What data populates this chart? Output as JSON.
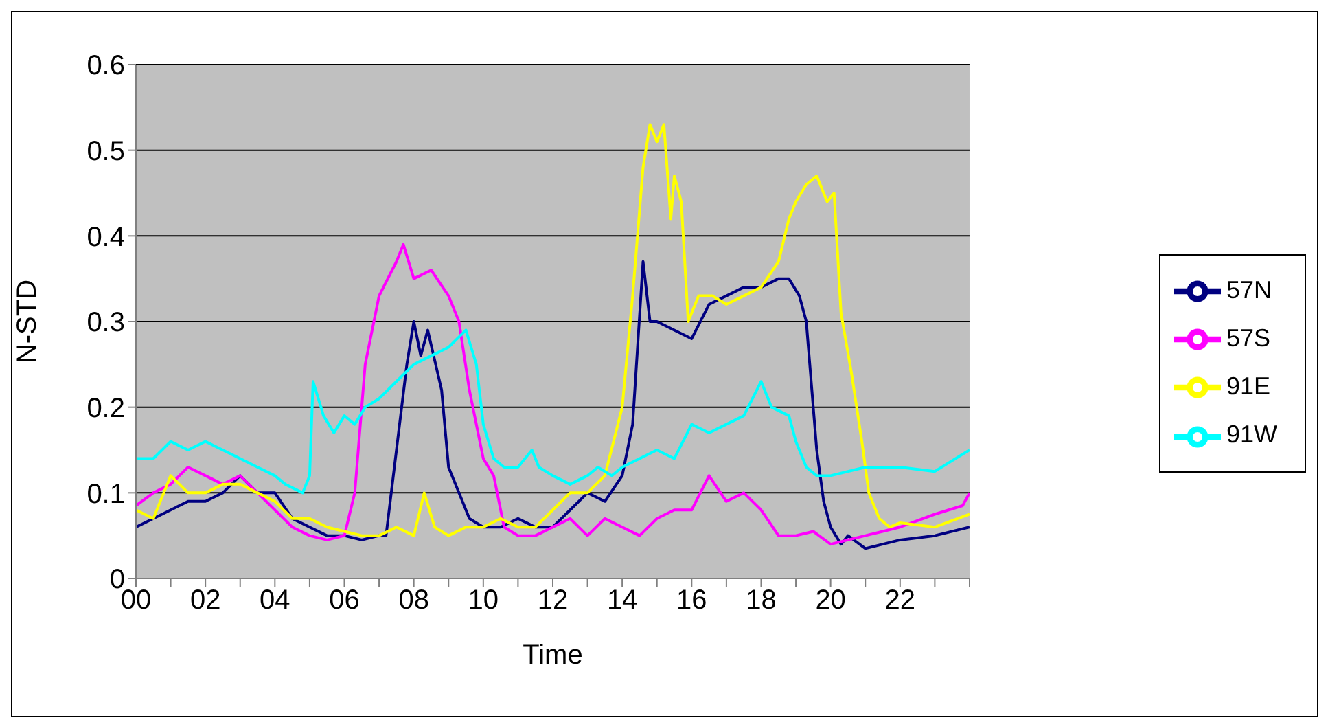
{
  "chart_data": {
    "type": "line",
    "xlabel": "Time",
    "ylabel": "N-STD",
    "xlim": [
      0,
      24
    ],
    "xticks": [
      {
        "value": 0,
        "label": "00"
      },
      {
        "value": 1,
        "label": null
      },
      {
        "value": 2,
        "label": "02"
      },
      {
        "value": 3,
        "label": null
      },
      {
        "value": 4,
        "label": "04"
      },
      {
        "value": 5,
        "label": null
      },
      {
        "value": 6,
        "label": "06"
      },
      {
        "value": 7,
        "label": null
      },
      {
        "value": 8,
        "label": "08"
      },
      {
        "value": 9,
        "label": null
      },
      {
        "value": 10,
        "label": "10"
      },
      {
        "value": 11,
        "label": null
      },
      {
        "value": 12,
        "label": "12"
      },
      {
        "value": 13,
        "label": null
      },
      {
        "value": 14,
        "label": "14"
      },
      {
        "value": 15,
        "label": null
      },
      {
        "value": 16,
        "label": "16"
      },
      {
        "value": 17,
        "label": null
      },
      {
        "value": 18,
        "label": "18"
      },
      {
        "value": 19,
        "label": null
      },
      {
        "value": 20,
        "label": "20"
      },
      {
        "value": 21,
        "label": null
      },
      {
        "value": 22,
        "label": "22"
      },
      {
        "value": 23,
        "label": null
      },
      {
        "value": 24,
        "label": null
      }
    ],
    "ylim": [
      0,
      0.6
    ],
    "yticks": [
      0,
      0.1,
      0.2,
      0.3,
      0.4,
      0.5,
      0.6
    ],
    "grid": "y",
    "legend": "right",
    "marker": "none",
    "line_style": "solid",
    "series": [
      {
        "name": "57N",
        "color": "#000080",
        "x": [
          0,
          0.5,
          1,
          1.5,
          2,
          2.5,
          3,
          3.5,
          4,
          4.5,
          5,
          5.5,
          6,
          6.5,
          7,
          7.2,
          7.5,
          7.8,
          8,
          8.2,
          8.4,
          8.8,
          9,
          9.3,
          9.6,
          10,
          10.5,
          11,
          11.5,
          12,
          12.5,
          13,
          13.5,
          14,
          14.3,
          14.6,
          14.8,
          15,
          15.5,
          16,
          16.5,
          17,
          17.5,
          18,
          18.5,
          18.8,
          19.1,
          19.3,
          19.6,
          19.8,
          20,
          20.3,
          20.5,
          21,
          21.5,
          22,
          23,
          24
        ],
        "values": [
          0.06,
          0.07,
          0.08,
          0.09,
          0.09,
          0.1,
          0.12,
          0.1,
          0.1,
          0.07,
          0.06,
          0.05,
          0.05,
          0.045,
          0.05,
          0.05,
          0.15,
          0.25,
          0.3,
          0.26,
          0.29,
          0.22,
          0.13,
          0.1,
          0.07,
          0.06,
          0.06,
          0.07,
          0.06,
          0.06,
          0.08,
          0.1,
          0.09,
          0.12,
          0.18,
          0.37,
          0.3,
          0.3,
          0.29,
          0.28,
          0.32,
          0.33,
          0.34,
          0.34,
          0.35,
          0.35,
          0.33,
          0.3,
          0.15,
          0.09,
          0.06,
          0.04,
          0.05,
          0.035,
          0.04,
          0.045,
          0.05,
          0.06
        ]
      },
      {
        "name": "57S",
        "color": "#ff00ff",
        "x": [
          0,
          0.5,
          1,
          1.5,
          2,
          2.5,
          3,
          3.5,
          4,
          4.5,
          5,
          5.5,
          6,
          6.3,
          6.6,
          7,
          7.5,
          7.7,
          8,
          8.5,
          9,
          9.3,
          9.6,
          10,
          10.3,
          10.6,
          11,
          11.5,
          12,
          12.5,
          13,
          13.5,
          14,
          14.5,
          15,
          15.5,
          16,
          16.5,
          17,
          17.5,
          18,
          18.5,
          19,
          19.5,
          20,
          20.5,
          21,
          21.5,
          22,
          23,
          23.8,
          24
        ],
        "values": [
          0.085,
          0.1,
          0.11,
          0.13,
          0.12,
          0.11,
          0.12,
          0.1,
          0.08,
          0.06,
          0.05,
          0.045,
          0.05,
          0.1,
          0.25,
          0.33,
          0.37,
          0.39,
          0.35,
          0.36,
          0.33,
          0.3,
          0.22,
          0.14,
          0.12,
          0.06,
          0.05,
          0.05,
          0.06,
          0.07,
          0.05,
          0.07,
          0.06,
          0.05,
          0.07,
          0.08,
          0.08,
          0.12,
          0.09,
          0.1,
          0.08,
          0.05,
          0.05,
          0.055,
          0.04,
          0.045,
          0.05,
          0.055,
          0.06,
          0.075,
          0.085,
          0.1
        ]
      },
      {
        "name": "91E",
        "color": "#ffff00",
        "x": [
          0,
          0.5,
          1,
          1.5,
          2,
          2.5,
          3,
          3.5,
          4,
          4.5,
          5,
          5.5,
          6,
          6.5,
          7,
          7.5,
          8,
          8.3,
          8.6,
          9,
          9.5,
          10,
          10.5,
          11,
          11.5,
          12,
          12.5,
          13,
          13.5,
          14,
          14.3,
          14.6,
          14.8,
          15,
          15.2,
          15.4,
          15.5,
          15.7,
          15.9,
          16.2,
          16.6,
          17,
          17.5,
          18,
          18.5,
          18.8,
          19,
          19.3,
          19.6,
          19.9,
          20.1,
          20.3,
          20.6,
          20.9,
          21.1,
          21.4,
          21.7,
          22,
          23,
          24
        ],
        "values": [
          0.08,
          0.07,
          0.12,
          0.1,
          0.1,
          0.11,
          0.11,
          0.1,
          0.09,
          0.07,
          0.07,
          0.06,
          0.055,
          0.05,
          0.05,
          0.06,
          0.05,
          0.1,
          0.06,
          0.05,
          0.06,
          0.06,
          0.07,
          0.06,
          0.06,
          0.08,
          0.1,
          0.1,
          0.12,
          0.2,
          0.33,
          0.48,
          0.53,
          0.51,
          0.53,
          0.42,
          0.47,
          0.44,
          0.3,
          0.33,
          0.33,
          0.32,
          0.33,
          0.34,
          0.37,
          0.42,
          0.44,
          0.46,
          0.47,
          0.44,
          0.45,
          0.31,
          0.24,
          0.16,
          0.1,
          0.07,
          0.06,
          0.065,
          0.06,
          0.075
        ]
      },
      {
        "name": "91W",
        "color": "#00ffff",
        "x": [
          0,
          0.5,
          1,
          1.5,
          2,
          2.5,
          3,
          3.5,
          4,
          4.3,
          4.8,
          5,
          5.1,
          5.4,
          5.7,
          6,
          6.3,
          6.6,
          7,
          7.5,
          8,
          8.5,
          9,
          9.5,
          9.8,
          10,
          10.3,
          10.6,
          11,
          11.4,
          11.6,
          12,
          12.5,
          13,
          13.3,
          13.7,
          14,
          14.5,
          15,
          15.5,
          16,
          16.5,
          17,
          17.5,
          18,
          18.3,
          18.8,
          19,
          19.3,
          19.6,
          20,
          21,
          22,
          23,
          24
        ],
        "values": [
          0.14,
          0.14,
          0.16,
          0.15,
          0.16,
          0.15,
          0.14,
          0.13,
          0.12,
          0.11,
          0.1,
          0.12,
          0.23,
          0.19,
          0.17,
          0.19,
          0.18,
          0.2,
          0.21,
          0.23,
          0.25,
          0.26,
          0.27,
          0.29,
          0.25,
          0.18,
          0.14,
          0.13,
          0.13,
          0.15,
          0.13,
          0.12,
          0.11,
          0.12,
          0.13,
          0.12,
          0.13,
          0.14,
          0.15,
          0.14,
          0.18,
          0.17,
          0.18,
          0.19,
          0.23,
          0.2,
          0.19,
          0.16,
          0.13,
          0.12,
          0.12,
          0.13,
          0.13,
          0.125,
          0.15
        ]
      }
    ]
  }
}
